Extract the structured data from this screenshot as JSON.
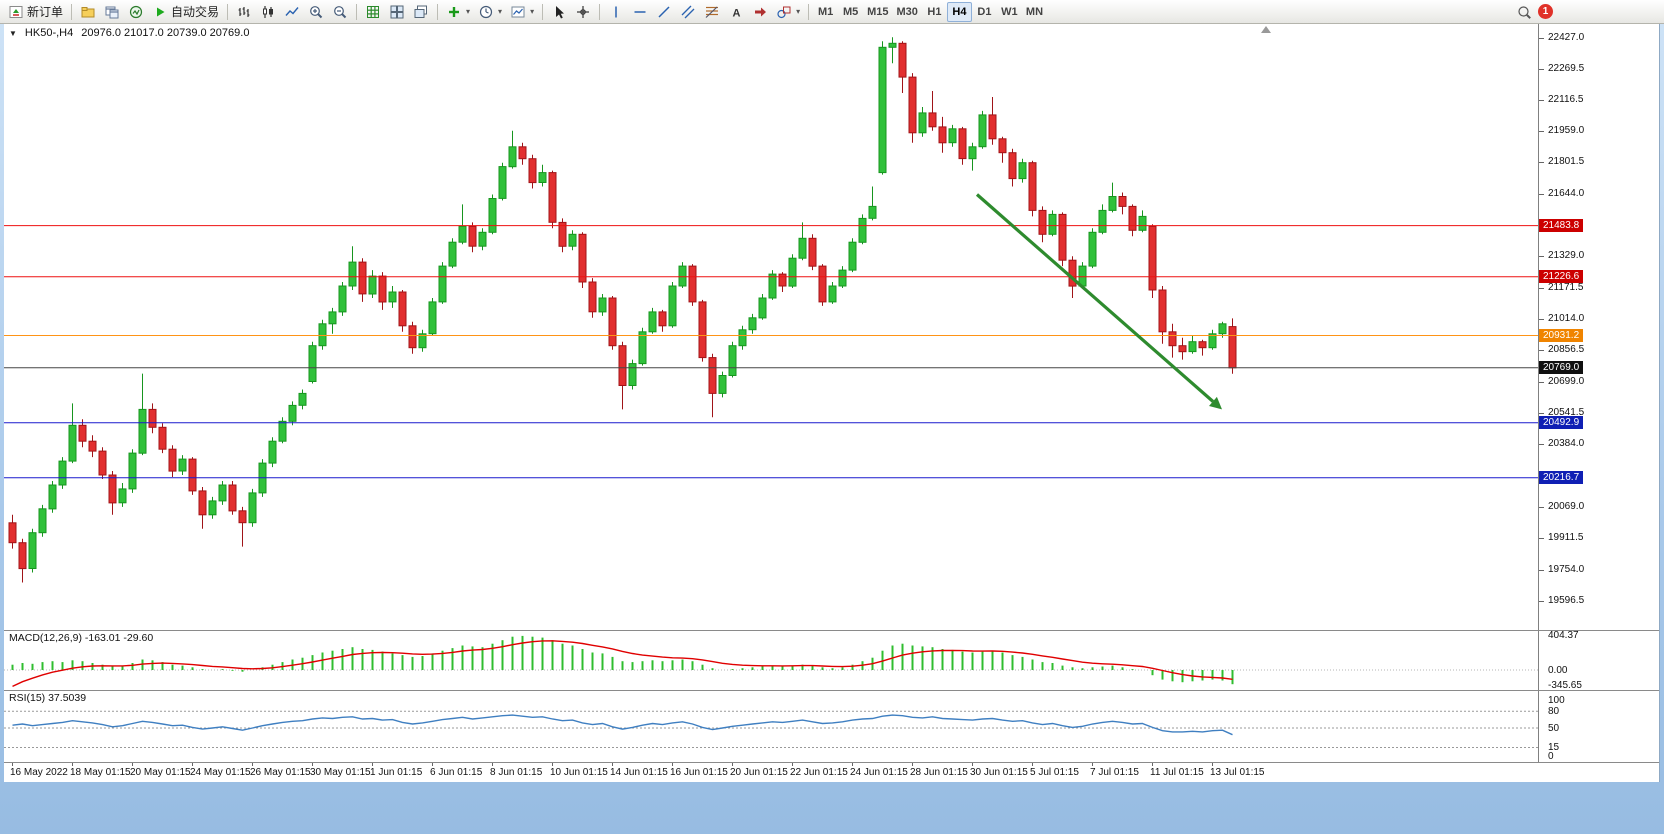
{
  "toolbar": {
    "groups": [
      {
        "items": [
          {
            "name": "new-order-button",
            "icon": "new-order",
            "label": "新订单"
          }
        ]
      },
      {
        "items": [
          {
            "name": "profiles-button",
            "icon": "profiles"
          },
          {
            "name": "charts-window-button",
            "icon": "charts"
          },
          {
            "name": "navigator-button",
            "icon": "navigator"
          },
          {
            "name": "autotrading-button",
            "icon": "play",
            "label": "自动交易"
          }
        ]
      },
      {
        "items": [
          {
            "name": "bar-chart-button",
            "icon": "chart-bars"
          },
          {
            "name": "candlestick-chart-button",
            "icon": "chart-candles"
          },
          {
            "name": "line-chart-button",
            "icon": "chart-line"
          },
          {
            "name": "zoom-in-button",
            "icon": "zoom-in"
          },
          {
            "name": "zoom-out-button",
            "icon": "zoom-out"
          }
        ]
      },
      {
        "items": [
          {
            "name": "grid-button",
            "icon": "grid"
          },
          {
            "name": "tile-windows-button",
            "icon": "tile"
          },
          {
            "name": "cascade-windows-button",
            "icon": "cascade"
          }
        ]
      },
      {
        "items": [
          {
            "name": "add-indicator-button",
            "icon": "add-ind",
            "dropdown": true
          },
          {
            "name": "period-button",
            "icon": "clock",
            "dropdown": true
          },
          {
            "name": "chart-template-button",
            "icon": "shot",
            "dropdown": true
          }
        ]
      },
      {
        "items": [
          {
            "name": "cursor-button",
            "icon": "cursor"
          },
          {
            "name": "crosshair-button",
            "icon": "crosshair"
          }
        ]
      },
      {
        "items": [
          {
            "name": "vertical-line-button",
            "icon": "vline"
          },
          {
            "name": "horizontal-line-button",
            "icon": "hline"
          },
          {
            "name": "trendline-button",
            "icon": "tline"
          },
          {
            "name": "channel-button",
            "icon": "channel"
          },
          {
            "name": "fibonacci-button",
            "icon": "fibo"
          },
          {
            "name": "text-button",
            "icon": "text"
          },
          {
            "name": "arrows-button",
            "icon": "arrows"
          },
          {
            "name": "shapes-button",
            "icon": "shapes",
            "dropdown": true
          }
        ]
      }
    ],
    "timeframes": [
      "M1",
      "M5",
      "M15",
      "M30",
      "H1",
      "H4",
      "D1",
      "W1",
      "MN"
    ],
    "active_timeframe": "H4",
    "notification_count": "1"
  },
  "chart": {
    "symbol": "HK50-,H4",
    "ohlc": "20976.0 21017.0 20739.0 20769.0"
  },
  "macd": {
    "label": "MACD(12,26,9) -163.01 -29.60",
    "axis": [
      {
        "text": "404.37",
        "value": 404.37
      },
      {
        "text": "0.00",
        "value": 0
      },
      {
        "text": "-345.65",
        "value": -345.65
      }
    ]
  },
  "rsi": {
    "label": "RSI(15) 37.5039",
    "axis": [
      100,
      80,
      50,
      15,
      0
    ],
    "levels": [
      80,
      50,
      15
    ]
  },
  "time_axis": [
    "16 May 2022",
    "18 May 01:15",
    "20 May 01:15",
    "24 May 01:15",
    "26 May 01:15",
    "30 May 01:15",
    "1 Jun 01:15",
    "6 Jun 01:15",
    "8 Jun 01:15",
    "10 Jun 01:15",
    "14 Jun 01:15",
    "16 Jun 01:15",
    "20 Jun 01:15",
    "22 Jun 01:15",
    "24 Jun 01:15",
    "28 Jun 01:15",
    "30 Jun 01:15",
    "5 Jul 01:15",
    "7 Jul 01:15",
    "11 Jul 01:15",
    "13 Jul 01:15"
  ],
  "chart_data": {
    "type": "candlestick",
    "symbol": "HK50-",
    "timeframe": "H4",
    "title": "HK50-,H4 20976.0 21017.0 20739.0 20769.0",
    "main_scale": {
      "max": 22497,
      "min": 19451
    },
    "macd_scale": {
      "max": 457,
      "min": -229
    },
    "rsi_scale": {
      "max": 118,
      "min": -11
    },
    "price_axis": [
      22427.0,
      22269.5,
      22116.5,
      21959.0,
      21801.5,
      21644.0,
      21329.0,
      21171.5,
      21014.0,
      20856.5,
      20699.0,
      20541.5,
      20384.0,
      20069.0,
      19911.5,
      19754.0,
      19596.5
    ],
    "hlines": [
      {
        "price": 21483.8,
        "color": "#ee1111",
        "tag": "#cc0000",
        "role": "resistance-line"
      },
      {
        "price": 21226.6,
        "color": "#ee1111",
        "tag": "#cc0000",
        "role": "resistance-line"
      },
      {
        "price": 20931.2,
        "color": "#ff9416",
        "tag": "#f08400",
        "role": "pivot-line"
      },
      {
        "price": 20769.0,
        "color": "#474747",
        "tag": "#101010",
        "role": "last-price-line"
      },
      {
        "price": 20492.9,
        "color": "#1a1acd",
        "tag": "#0f1fb4",
        "role": "support-line"
      },
      {
        "price": 20216.7,
        "color": "#1a1acd",
        "tag": "#0f1fb4",
        "role": "support-line"
      }
    ],
    "candles": [
      [
        19990,
        20030,
        19860,
        19890
      ],
      [
        19890,
        19910,
        19690,
        19760
      ],
      [
        19760,
        19960,
        19740,
        19940
      ],
      [
        19940,
        20080,
        19920,
        20060
      ],
      [
        20060,
        20200,
        20040,
        20180
      ],
      [
        20180,
        20320,
        20160,
        20300
      ],
      [
        20300,
        20590,
        20290,
        20480
      ],
      [
        20480,
        20510,
        20370,
        20400
      ],
      [
        20400,
        20430,
        20320,
        20350
      ],
      [
        20350,
        20370,
        20210,
        20230
      ],
      [
        20230,
        20250,
        20030,
        20090
      ],
      [
        20090,
        20190,
        20070,
        20160
      ],
      [
        20160,
        20360,
        20140,
        20340
      ],
      [
        20340,
        20740,
        20330,
        20560
      ],
      [
        20560,
        20590,
        20440,
        20470
      ],
      [
        20470,
        20490,
        20340,
        20360
      ],
      [
        20360,
        20380,
        20220,
        20250
      ],
      [
        20250,
        20330,
        20230,
        20310
      ],
      [
        20310,
        20320,
        20130,
        20150
      ],
      [
        20150,
        20170,
        19960,
        20030
      ],
      [
        20030,
        20120,
        20010,
        20100
      ],
      [
        20100,
        20200,
        20080,
        20180
      ],
      [
        20180,
        20200,
        20030,
        20050
      ],
      [
        20050,
        20070,
        19870,
        19990
      ],
      [
        19990,
        20160,
        19970,
        20140
      ],
      [
        20140,
        20310,
        20120,
        20290
      ],
      [
        20290,
        20420,
        20270,
        20400
      ],
      [
        20400,
        20520,
        20390,
        20500
      ],
      [
        20500,
        20600,
        20480,
        20580
      ],
      [
        20580,
        20660,
        20560,
        20640
      ],
      [
        20700,
        20900,
        20690,
        20880
      ],
      [
        20880,
        21010,
        20860,
        20990
      ],
      [
        20990,
        21070,
        20940,
        21050
      ],
      [
        21050,
        21200,
        21030,
        21180
      ],
      [
        21180,
        21380,
        21160,
        21300
      ],
      [
        21300,
        21320,
        21100,
        21140
      ],
      [
        21140,
        21260,
        21120,
        21230
      ],
      [
        21230,
        21250,
        21060,
        21100
      ],
      [
        21100,
        21180,
        21070,
        21150
      ],
      [
        21150,
        21160,
        20950,
        20980
      ],
      [
        20980,
        21000,
        20840,
        20870
      ],
      [
        20870,
        20960,
        20850,
        20940
      ],
      [
        20940,
        21120,
        20930,
        21100
      ],
      [
        21100,
        21300,
        21090,
        21280
      ],
      [
        21280,
        21420,
        21270,
        21400
      ],
      [
        21400,
        21590,
        21390,
        21480
      ],
      [
        21480,
        21500,
        21350,
        21380
      ],
      [
        21380,
        21470,
        21360,
        21450
      ],
      [
        21450,
        21640,
        21440,
        21620
      ],
      [
        21620,
        21800,
        21610,
        21780
      ],
      [
        21780,
        21960,
        21770,
        21880
      ],
      [
        21880,
        21900,
        21790,
        21820
      ],
      [
        21820,
        21840,
        21670,
        21700
      ],
      [
        21700,
        21790,
        21680,
        21750
      ],
      [
        21750,
        21760,
        21470,
        21500
      ],
      [
        21500,
        21520,
        21350,
        21380
      ],
      [
        21380,
        21460,
        21360,
        21440
      ],
      [
        21440,
        21450,
        21170,
        21200
      ],
      [
        21200,
        21220,
        21020,
        21050
      ],
      [
        21050,
        21140,
        21030,
        21120
      ],
      [
        21120,
        21130,
        20860,
        20880
      ],
      [
        20880,
        20900,
        20560,
        20680
      ],
      [
        20680,
        20810,
        20660,
        20790
      ],
      [
        20790,
        20970,
        20780,
        20950
      ],
      [
        20950,
        21070,
        20940,
        21050
      ],
      [
        21050,
        21060,
        20950,
        20980
      ],
      [
        20980,
        21200,
        20970,
        21180
      ],
      [
        21180,
        21300,
        21170,
        21280
      ],
      [
        21280,
        21290,
        21080,
        21100
      ],
      [
        21100,
        21110,
        20800,
        20820
      ],
      [
        20820,
        20840,
        20520,
        20640
      ],
      [
        20640,
        20750,
        20620,
        20730
      ],
      [
        20730,
        20900,
        20720,
        20880
      ],
      [
        20880,
        20980,
        20860,
        20960
      ],
      [
        20960,
        21040,
        20940,
        21020
      ],
      [
        21020,
        21140,
        21010,
        21120
      ],
      [
        21120,
        21260,
        21110,
        21240
      ],
      [
        21240,
        21250,
        21150,
        21180
      ],
      [
        21180,
        21340,
        21170,
        21320
      ],
      [
        21320,
        21500,
        21310,
        21420
      ],
      [
        21420,
        21440,
        21260,
        21280
      ],
      [
        21280,
        21290,
        21080,
        21100
      ],
      [
        21100,
        21200,
        21090,
        21180
      ],
      [
        21180,
        21280,
        21170,
        21260
      ],
      [
        21260,
        21420,
        21250,
        21400
      ],
      [
        21400,
        21540,
        21390,
        21520
      ],
      [
        21520,
        21680,
        21510,
        21580
      ],
      [
        21750,
        22410,
        21740,
        22380
      ],
      [
        22380,
        22430,
        22300,
        22400
      ],
      [
        22400,
        22410,
        22150,
        22230
      ],
      [
        22230,
        22250,
        21900,
        21950
      ],
      [
        21950,
        22080,
        21930,
        22050
      ],
      [
        22050,
        22160,
        21960,
        21980
      ],
      [
        21980,
        22030,
        21850,
        21900
      ],
      [
        21900,
        21990,
        21880,
        21970
      ],
      [
        21970,
        21980,
        21790,
        21820
      ],
      [
        21820,
        21900,
        21760,
        21880
      ],
      [
        21880,
        22060,
        21870,
        22040
      ],
      [
        22040,
        22130,
        21890,
        21920
      ],
      [
        21920,
        21930,
        21800,
        21850
      ],
      [
        21850,
        21870,
        21680,
        21720
      ],
      [
        21720,
        21820,
        21700,
        21800
      ],
      [
        21800,
        21810,
        21530,
        21560
      ],
      [
        21560,
        21580,
        21400,
        21440
      ],
      [
        21440,
        21560,
        21430,
        21540
      ],
      [
        21540,
        21550,
        21280,
        21310
      ],
      [
        21310,
        21330,
        21120,
        21180
      ],
      [
        21180,
        21300,
        21170,
        21280
      ],
      [
        21280,
        21470,
        21270,
        21450
      ],
      [
        21450,
        21590,
        21440,
        21560
      ],
      [
        21560,
        21700,
        21550,
        21630
      ],
      [
        21630,
        21650,
        21540,
        21580
      ],
      [
        21580,
        21590,
        21430,
        21460
      ],
      [
        21460,
        21560,
        21450,
        21530
      ],
      [
        21480,
        21490,
        21120,
        21160
      ],
      [
        21160,
        21180,
        20890,
        20950
      ],
      [
        20950,
        20990,
        20820,
        20880
      ],
      [
        20880,
        20920,
        20810,
        20850
      ],
      [
        20850,
        20930,
        20840,
        20900
      ],
      [
        20900,
        20910,
        20830,
        20870
      ],
      [
        20870,
        20960,
        20860,
        20940
      ],
      [
        20940,
        21000,
        20920,
        20990
      ],
      [
        20976,
        21017,
        20739,
        20769
      ]
    ],
    "macd_histogram": [
      60,
      80,
      70,
      90,
      100,
      90,
      110,
      100,
      80,
      60,
      40,
      50,
      80,
      120,
      110,
      90,
      60,
      50,
      30,
      10,
      0,
      10,
      -10,
      -20,
      0,
      30,
      60,
      90,
      120,
      140,
      170,
      200,
      220,
      240,
      260,
      240,
      230,
      210,
      190,
      170,
      150,
      160,
      190,
      220,
      250,
      280,
      270,
      260,
      300,
      340,
      380,
      390,
      380,
      370,
      340,
      300,
      280,
      240,
      200,
      190,
      150,
      100,
      90,
      100,
      110,
      100,
      110,
      120,
      100,
      60,
      20,
      0,
      10,
      20,
      30,
      40,
      50,
      40,
      50,
      60,
      50,
      30,
      20,
      30,
      60,
      100,
      140,
      220,
      280,
      300,
      280,
      270,
      260,
      240,
      230,
      210,
      200,
      210,
      220,
      200,
      170,
      150,
      120,
      90,
      80,
      50,
      30,
      20,
      30,
      40,
      50,
      30,
      10,
      0,
      -60,
      -110,
      -130,
      -140,
      -130,
      -120,
      -110,
      -120,
      -163
    ],
    "rsi_values": [
      55,
      57,
      54,
      56,
      58,
      60,
      63,
      61,
      59,
      56,
      52,
      54,
      58,
      62,
      60,
      57,
      54,
      55,
      51,
      48,
      50,
      52,
      49,
      46,
      50,
      54,
      57,
      60,
      62,
      63,
      66,
      68,
      67,
      69,
      70,
      66,
      67,
      64,
      65,
      60,
      57,
      59,
      62,
      65,
      67,
      69,
      66,
      68,
      70,
      72,
      73,
      71,
      69,
      70,
      66,
      63,
      64,
      59,
      56,
      58,
      52,
      48,
      51,
      55,
      58,
      56,
      59,
      61,
      57,
      51,
      47,
      50,
      53,
      55,
      57,
      59,
      61,
      60,
      62,
      64,
      61,
      58,
      59,
      61,
      64,
      66,
      67,
      71,
      73,
      72,
      69,
      68,
      70,
      67,
      66,
      65,
      64,
      66,
      67,
      64,
      62,
      63,
      59,
      56,
      58,
      54,
      51,
      53,
      57,
      60,
      62,
      60,
      57,
      58,
      51,
      45,
      43,
      43,
      44,
      43,
      45,
      46,
      38
    ],
    "annotations": [
      {
        "type": "arrow",
        "bar1": 96.5,
        "price1": 21640,
        "bar2": 121,
        "price2": 20560,
        "color": "#2e8b2e"
      }
    ]
  }
}
